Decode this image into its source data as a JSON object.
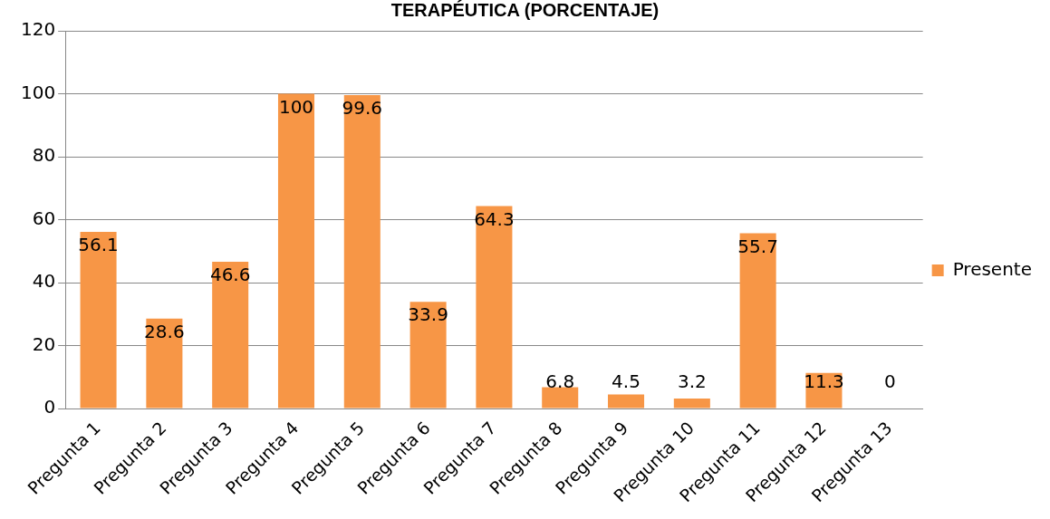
{
  "chart_data": {
    "type": "bar",
    "title": "TERAPÉUTICA (PORCENTAJE)",
    "categories": [
      "Pregunta 1",
      "Pregunta 2",
      "Pregunta 3",
      "Pregunta 4",
      "Pregunta 5",
      "Pregunta 6",
      "Pregunta 7",
      "Pregunta 8",
      "Pregunta 9",
      "Pregunta 10",
      "Pregunta 11",
      "Pregunta 12",
      "Pregunta 13"
    ],
    "series": [
      {
        "name": "Presente",
        "color": "#f79646",
        "values": [
          56.1,
          28.6,
          46.6,
          100,
          99.6,
          33.9,
          64.3,
          6.8,
          4.5,
          3.2,
          55.7,
          11.3,
          0
        ]
      }
    ],
    "ylim": [
      0,
      120
    ],
    "yticks": [
      0,
      20,
      40,
      60,
      80,
      100,
      120
    ],
    "grid": "y",
    "legend": "right",
    "data_labels": true
  }
}
